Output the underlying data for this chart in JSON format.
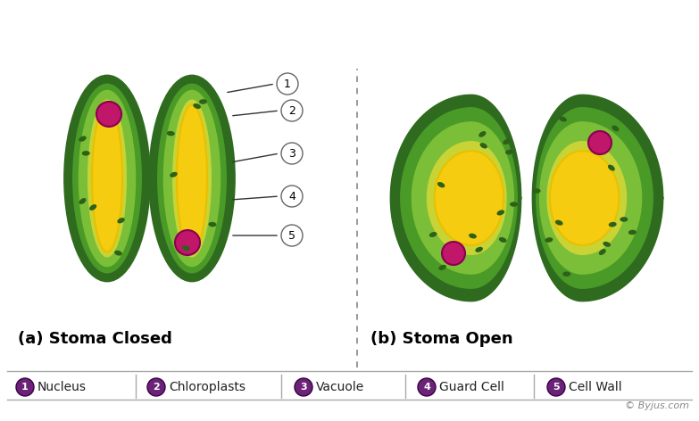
{
  "bg_color": "#ffffff",
  "dark_green": "#2e6b1e",
  "medium_green": "#4a9a28",
  "light_green": "#7bbf38",
  "yellow_green": "#c8d435",
  "yellow": "#f5cc10",
  "yellow2": "#e8c000",
  "chloroplast_dark": "#2d6018",
  "nucleus_color": "#c0176a",
  "nucleus_edge": "#8b0050",
  "title_a": "(a) Stoma Closed",
  "title_b": "(b) Stoma Open",
  "legend_items": [
    {
      "num": "1",
      "label": "Nucleus"
    },
    {
      "num": "2",
      "label": "Chloroplasts"
    },
    {
      "num": "3",
      "label": "Vacuole"
    },
    {
      "num": "4",
      "label": "Guard Cell"
    },
    {
      "num": "5",
      "label": "Cell Wall"
    }
  ],
  "legend_purple": "#6b2377",
  "watermark": "© Byjus.com"
}
